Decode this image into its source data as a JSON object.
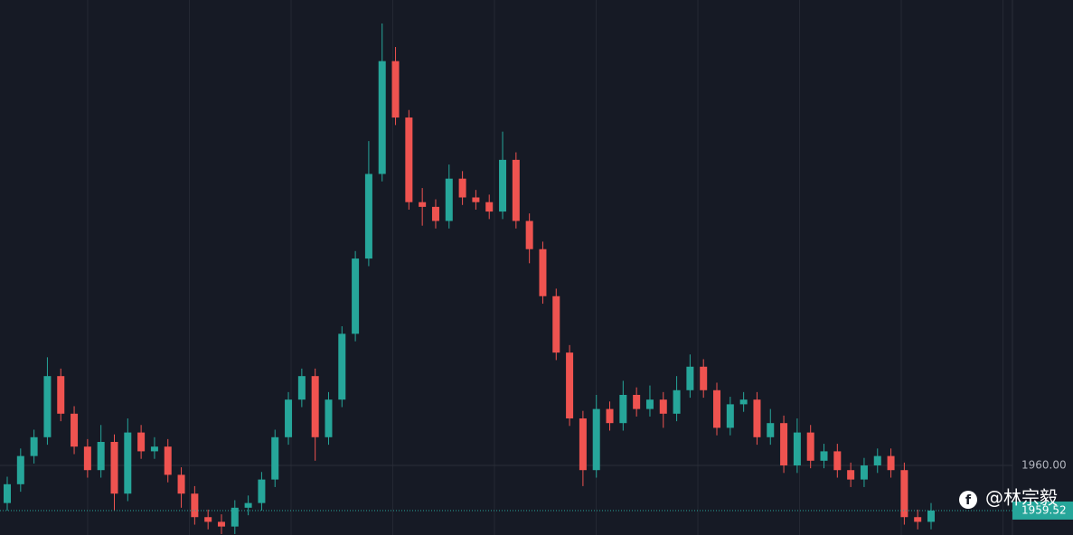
{
  "chart_data": {
    "type": "candlestick",
    "open": [
      1959.6,
      1959.8,
      1960.1,
      1960.3,
      1960.95,
      1960.55,
      1960.2,
      1959.95,
      1960.25,
      1959.7,
      1960.35,
      1960.15,
      1960.2,
      1959.9,
      1959.7,
      1959.45,
      1959.4,
      1959.35,
      1959.55,
      1959.6,
      1959.85,
      1960.3,
      1960.7,
      1960.95,
      1960.3,
      1960.7,
      1961.4,
      1962.2,
      1963.1,
      1964.3,
      1963.7,
      1962.8,
      1962.75,
      1962.6,
      1963.05,
      1962.85,
      1962.8,
      1962.7,
      1963.25,
      1962.6,
      1962.3,
      1961.8,
      1961.2,
      1960.5,
      1959.95,
      1960.6,
      1960.45,
      1960.75,
      1960.6,
      1960.7,
      1960.55,
      1960.8,
      1961.05,
      1960.8,
      1960.4,
      1960.65,
      1960.7,
      1960.3,
      1960.45,
      1960.0,
      1960.35,
      1960.05,
      1960.15,
      1959.95,
      1959.85,
      1960.0,
      1960.1,
      1959.95,
      1959.45,
      1959.4
    ],
    "high": [
      1959.88,
      1960.18,
      1960.38,
      1961.15,
      1961.03,
      1960.63,
      1960.28,
      1960.43,
      1960.33,
      1960.5,
      1960.43,
      1960.3,
      1960.28,
      1959.98,
      1959.78,
      1959.53,
      1959.48,
      1959.63,
      1959.68,
      1959.93,
      1960.38,
      1960.78,
      1961.03,
      1961.03,
      1960.78,
      1961.48,
      1962.28,
      1963.45,
      1964.7,
      1964.45,
      1963.78,
      1962.95,
      1962.83,
      1963.2,
      1963.13,
      1962.93,
      1962.88,
      1963.55,
      1963.33,
      1962.68,
      1962.38,
      1961.88,
      1961.28,
      1960.58,
      1960.75,
      1960.68,
      1960.9,
      1960.83,
      1960.85,
      1960.78,
      1960.95,
      1961.18,
      1961.13,
      1960.88,
      1960.73,
      1960.78,
      1960.78,
      1960.6,
      1960.53,
      1960.5,
      1960.43,
      1960.23,
      1960.23,
      1960.03,
      1960.08,
      1960.18,
      1960.18,
      1960.03,
      1959.53,
      1959.6
    ],
    "low": [
      1959.52,
      1959.72,
      1960.02,
      1960.22,
      1960.47,
      1960.12,
      1959.87,
      1959.87,
      1959.52,
      1959.62,
      1960.07,
      1960.07,
      1959.82,
      1959.55,
      1959.37,
      1959.32,
      1959.27,
      1959.27,
      1959.47,
      1959.52,
      1959.77,
      1960.22,
      1960.62,
      1960.05,
      1960.22,
      1960.62,
      1961.32,
      1962.12,
      1963.02,
      1963.62,
      1962.72,
      1962.55,
      1962.52,
      1962.52,
      1962.77,
      1962.72,
      1962.62,
      1962.62,
      1962.52,
      1962.15,
      1961.72,
      1961.12,
      1960.42,
      1959.78,
      1959.87,
      1960.37,
      1960.37,
      1960.52,
      1960.52,
      1960.4,
      1960.47,
      1960.72,
      1960.72,
      1960.32,
      1960.32,
      1960.57,
      1960.22,
      1960.22,
      1959.92,
      1959.92,
      1959.97,
      1959.97,
      1959.87,
      1959.77,
      1959.77,
      1959.92,
      1959.87,
      1959.37,
      1959.32,
      1959.32
    ],
    "close": [
      1959.8,
      1960.1,
      1960.3,
      1960.95,
      1960.55,
      1960.2,
      1959.95,
      1960.25,
      1959.7,
      1960.35,
      1960.15,
      1960.2,
      1959.9,
      1959.7,
      1959.45,
      1959.4,
      1959.35,
      1959.55,
      1959.6,
      1959.85,
      1960.3,
      1960.7,
      1960.95,
      1960.3,
      1960.7,
      1961.4,
      1962.2,
      1963.1,
      1964.3,
      1963.7,
      1962.8,
      1962.75,
      1962.6,
      1963.05,
      1962.85,
      1962.8,
      1962.7,
      1963.25,
      1962.6,
      1962.3,
      1961.8,
      1961.2,
      1960.5,
      1959.95,
      1960.6,
      1960.45,
      1960.75,
      1960.6,
      1960.7,
      1960.55,
      1960.8,
      1961.05,
      1960.8,
      1960.4,
      1960.65,
      1960.7,
      1960.3,
      1960.45,
      1960.0,
      1960.35,
      1960.05,
      1960.15,
      1959.95,
      1959.85,
      1960.0,
      1960.1,
      1959.95,
      1959.45,
      1959.4,
      1959.52
    ],
    "up_color": "#26a69a",
    "down_color": "#ef5350",
    "ylim": [
      1959.26,
      1964.95
    ],
    "yticks": [
      {
        "value": 1960,
        "label": "1960.00"
      }
    ],
    "grid": true,
    "last_price": {
      "value": 1959.52,
      "label": "1959.52"
    },
    "watermark": "@林宗毅"
  }
}
